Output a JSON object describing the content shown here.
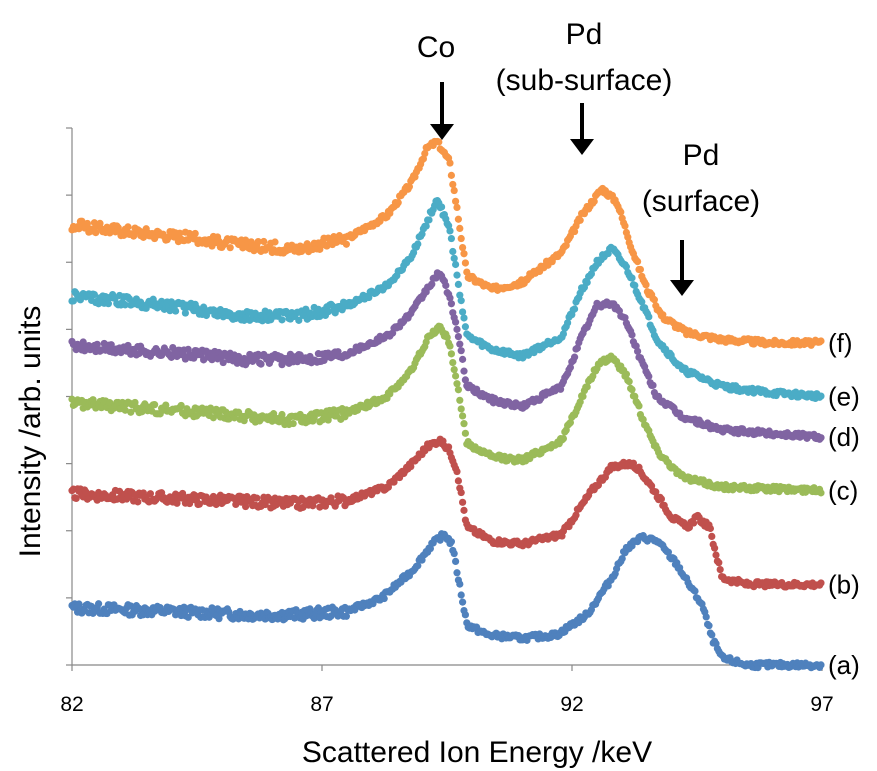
{
  "chart_data": {
    "type": "scatter",
    "xlabel": "Scattered Ion Energy /keV",
    "ylabel": "Intensity /arb. units",
    "xlim": [
      82,
      97
    ],
    "ylim": [
      0,
      8
    ],
    "x_ticks": [
      "82",
      "87",
      "92",
      "97"
    ],
    "y_tick_count": 9,
    "y_tick_labels_shown": false,
    "grid": false,
    "annotations": [
      {
        "text": "Co",
        "x": 89.4
      },
      {
        "text": "Pd",
        "text2": "(sub-surface)",
        "x": 92.2
      },
      {
        "text": "Pd",
        "text2": "(surface)",
        "x": 94.2
      }
    ],
    "series": [
      {
        "label": "(a)",
        "color": "#4f81bd",
        "baseline": 0.0,
        "x": [
          82,
          84,
          85.5,
          86.5,
          87.5,
          88.2,
          88.8,
          89.2,
          89.45,
          89.6,
          89.7,
          89.9,
          90.3,
          91,
          91.7,
          92.3,
          92.8,
          93.1,
          93.4,
          93.7,
          94.1,
          94.3,
          94.6,
          94.8,
          95,
          95.5,
          97
        ],
        "y": [
          0.85,
          0.8,
          0.75,
          0.75,
          0.8,
          1.0,
          1.4,
          1.8,
          1.95,
          1.8,
          1.4,
          0.6,
          0.45,
          0.4,
          0.45,
          0.75,
          1.3,
          1.75,
          1.9,
          1.85,
          1.5,
          1.25,
          0.9,
          0.4,
          0.1,
          0.0,
          0.0
        ]
      },
      {
        "label": "(b)",
        "color": "#c0504d",
        "baseline": 1.2,
        "x": [
          82,
          83.5,
          85,
          86.5,
          87.5,
          88.3,
          88.8,
          89.1,
          89.35,
          89.55,
          89.7,
          89.9,
          90.4,
          91,
          91.8,
          92.4,
          92.8,
          93.1,
          93.3,
          93.6,
          94,
          94.3,
          94.5,
          94.75,
          95,
          95.5,
          97
        ],
        "y": [
          2.55,
          2.5,
          2.45,
          2.4,
          2.45,
          2.65,
          3.0,
          3.25,
          3.35,
          3.2,
          2.9,
          2.05,
          1.85,
          1.8,
          1.95,
          2.6,
          2.95,
          3.0,
          2.95,
          2.65,
          2.2,
          2.05,
          2.2,
          2.05,
          1.3,
          1.2,
          1.2
        ]
      },
      {
        "label": "(c)",
        "color": "#9bbb59",
        "baseline": 2.6,
        "x": [
          82,
          84,
          85.5,
          86.5,
          87.5,
          88.3,
          88.8,
          89.1,
          89.35,
          89.55,
          89.7,
          89.9,
          90.4,
          91,
          91.8,
          92.2,
          92.5,
          92.8,
          93.1,
          93.4,
          93.7,
          94.2,
          95,
          97
        ],
        "y": [
          3.9,
          3.8,
          3.7,
          3.65,
          3.75,
          4.0,
          4.4,
          4.85,
          5.05,
          4.8,
          4.2,
          3.3,
          3.1,
          3.05,
          3.35,
          4.0,
          4.45,
          4.6,
          4.3,
          3.7,
          3.2,
          2.8,
          2.65,
          2.6
        ]
      },
      {
        "label": "(d)",
        "color": "#8064a2",
        "baseline": 3.4,
        "x": [
          82,
          84,
          85.5,
          86.5,
          87.5,
          88.3,
          88.8,
          89.1,
          89.35,
          89.55,
          89.7,
          89.9,
          90.4,
          91,
          91.8,
          92.2,
          92.5,
          92.8,
          93.1,
          93.4,
          93.7,
          94.2,
          95,
          96,
          97
        ],
        "y": [
          4.75,
          4.65,
          4.55,
          4.55,
          4.65,
          4.9,
          5.25,
          5.6,
          5.85,
          5.5,
          5.0,
          4.15,
          3.95,
          3.85,
          4.15,
          4.9,
          5.35,
          5.4,
          5.1,
          4.5,
          4.0,
          3.7,
          3.5,
          3.45,
          3.4
        ]
      },
      {
        "label": "(e)",
        "color": "#4bacc6",
        "baseline": 4.0,
        "x": [
          82,
          84,
          85.5,
          86.5,
          87.5,
          88.3,
          88.8,
          89.1,
          89.3,
          89.55,
          89.7,
          89.9,
          90.4,
          91,
          91.8,
          92.2,
          92.5,
          92.8,
          93.1,
          93.4,
          93.7,
          94.2,
          95,
          96,
          97
        ],
        "y": [
          5.5,
          5.35,
          5.2,
          5.2,
          5.35,
          5.65,
          6.1,
          6.6,
          6.95,
          6.5,
          5.8,
          4.9,
          4.7,
          4.6,
          4.9,
          5.6,
          6.0,
          6.2,
          5.9,
          5.4,
          4.85,
          4.4,
          4.15,
          4.05,
          4.0
        ]
      },
      {
        "label": "(f)",
        "color": "#f79646",
        "baseline": 4.8,
        "x": [
          82,
          84,
          85.5,
          86.5,
          87.5,
          88.3,
          88.8,
          89.1,
          89.3,
          89.55,
          89.7,
          89.9,
          90.4,
          91,
          91.8,
          92.2,
          92.6,
          92.9,
          93.2,
          93.5,
          93.8,
          94.3,
          95,
          96,
          97
        ],
        "y": [
          6.55,
          6.4,
          6.25,
          6.2,
          6.35,
          6.7,
          7.2,
          7.7,
          7.8,
          7.5,
          6.8,
          5.8,
          5.6,
          5.7,
          6.15,
          6.7,
          7.1,
          6.9,
          6.2,
          5.6,
          5.2,
          4.95,
          4.85,
          4.8,
          4.8
        ]
      }
    ]
  }
}
